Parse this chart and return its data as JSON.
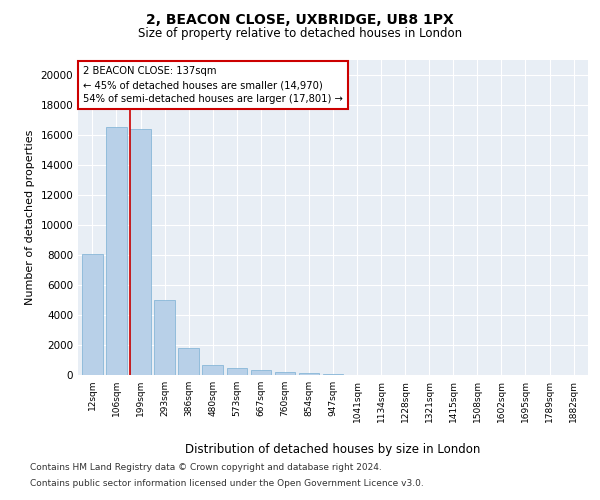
{
  "title1": "2, BEACON CLOSE, UXBRIDGE, UB8 1PX",
  "title2": "Size of property relative to detached houses in London",
  "xlabel": "Distribution of detached houses by size in London",
  "ylabel": "Number of detached properties",
  "categories": [
    "12sqm",
    "106sqm",
    "199sqm",
    "293sqm",
    "386sqm",
    "480sqm",
    "573sqm",
    "667sqm",
    "760sqm",
    "854sqm",
    "947sqm",
    "1041sqm",
    "1134sqm",
    "1228sqm",
    "1321sqm",
    "1415sqm",
    "1508sqm",
    "1602sqm",
    "1695sqm",
    "1789sqm",
    "1882sqm"
  ],
  "values": [
    8050,
    16500,
    16400,
    5000,
    1800,
    700,
    500,
    350,
    200,
    130,
    60,
    30,
    15,
    8,
    5,
    3,
    2,
    2,
    1,
    1,
    1
  ],
  "bar_color": "#b8d0e8",
  "bar_edge_color": "#7aafd4",
  "red_line_x": 1.55,
  "annotation_text": "2 BEACON CLOSE: 137sqm\n← 45% of detached houses are smaller (14,970)\n54% of semi-detached houses are larger (17,801) →",
  "annotation_box_color": "#ffffff",
  "annotation_box_edge": "#cc0000",
  "red_line_color": "#cc0000",
  "ylim": [
    0,
    21000
  ],
  "yticks": [
    0,
    2000,
    4000,
    6000,
    8000,
    10000,
    12000,
    14000,
    16000,
    18000,
    20000
  ],
  "footer1": "Contains HM Land Registry data © Crown copyright and database right 2024.",
  "footer2": "Contains public sector information licensed under the Open Government Licence v3.0.",
  "fig_bg_color": "#ffffff",
  "plot_bg_color": "#e8eef5"
}
